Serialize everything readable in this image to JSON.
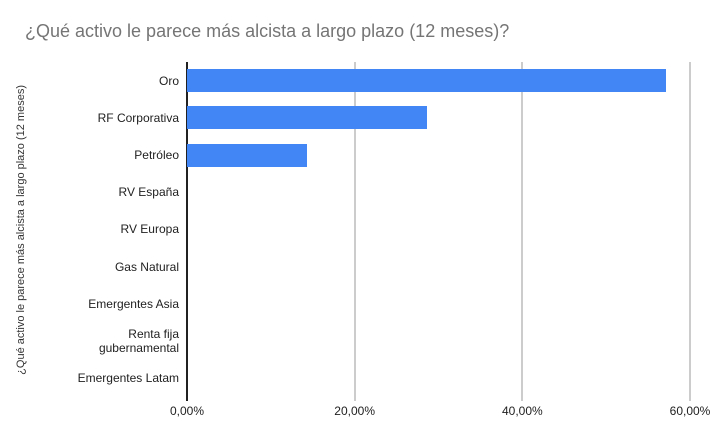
{
  "chart_data": {
    "type": "bar",
    "orientation": "horizontal",
    "title": "¿Qué activo le parece más alcista a largo plazo (12 meses)?",
    "ylabel": "¿Qué activo le parece más alcista a largo plazo (12 meses)",
    "xlabel": "",
    "categories": [
      "Oro",
      "RF Corporativa",
      "Petróleo",
      "RV España",
      "RV Europa",
      "Gas Natural",
      "Emergentes Asia",
      "Renta fija gubernamental",
      "Emergentes Latam"
    ],
    "values": [
      57.14,
      28.57,
      14.29,
      0,
      0,
      0,
      0,
      0,
      0
    ],
    "x_ticks": [
      {
        "value": 0,
        "label": "0,00%"
      },
      {
        "value": 20,
        "label": "20,00%"
      },
      {
        "value": 40,
        "label": "40,00%"
      },
      {
        "value": 60,
        "label": "60,00%"
      }
    ],
    "xlim": [
      0,
      60
    ],
    "grid": true,
    "legend": "none",
    "bar_color": "#4285f4",
    "gridline_color": "#cccccc",
    "axis_color": "#212121",
    "title_color": "#757575"
  }
}
